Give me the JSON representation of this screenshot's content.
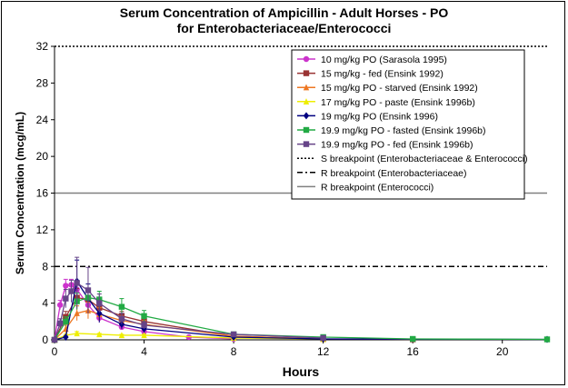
{
  "chart_data": {
    "type": "line",
    "title_line1": "Serum Concentration of Ampicillin  - Adult Horses - PO",
    "title_line2": "for Enterobacteriaceae/Enterococci",
    "xlabel": "Hours",
    "ylabel": "Serum Concentration (mcg/mL)",
    "xlim": [
      0,
      22
    ],
    "ylim": [
      0,
      32
    ],
    "xticks": [
      "0",
      "4",
      "8",
      "12",
      "16",
      "20"
    ],
    "yticks": [
      "0",
      "4",
      "8",
      "12",
      "16",
      "20",
      "24",
      "28",
      "32"
    ],
    "xtick_values": [
      0,
      4,
      8,
      12,
      16,
      20
    ],
    "ytick_values": [
      0,
      4,
      8,
      12,
      16,
      20,
      24,
      28,
      32
    ],
    "legend_position": "top-right",
    "series": [
      {
        "name": "10 mg/kg PO (Sarasola 1995)",
        "color": "#cc33cc",
        "marker": "circle",
        "x": [
          0,
          0.25,
          0.5,
          0.75,
          1,
          1.5,
          2,
          3,
          4,
          6,
          8
        ],
        "y": [
          0,
          3.8,
          5.9,
          6.0,
          5.5,
          3.8,
          2.4,
          1.4,
          0.9,
          0.3,
          0.1
        ],
        "err": [
          0,
          0.5,
          0.7,
          0.6,
          0.8,
          0.6,
          0.5,
          0.3,
          0.2,
          0.1,
          0
        ]
      },
      {
        "name": "15 mg/kg - fed (Ensink 1992)",
        "color": "#993333",
        "marker": "square",
        "x": [
          0,
          0.5,
          1,
          1.5,
          2,
          3,
          4,
          8,
          12,
          16
        ],
        "y": [
          0,
          2.5,
          4.6,
          4.4,
          3.5,
          2.6,
          2.0,
          0.4,
          0.1,
          0.05
        ],
        "err": [
          0,
          0.6,
          1.0,
          0.9,
          0.7,
          0.5,
          0.4,
          0.1,
          0,
          0
        ]
      },
      {
        "name": "15 mg/kg PO - starved (Ensink 1992)",
        "color": "#ee7722",
        "marker": "triangle",
        "x": [
          0,
          0.5,
          1,
          1.5,
          2,
          3,
          4,
          8,
          12
        ],
        "y": [
          0,
          1.2,
          2.9,
          3.2,
          2.8,
          2.1,
          1.7,
          0.4,
          0.1
        ],
        "err": [
          0,
          0.4,
          0.8,
          0.9,
          0.7,
          0.5,
          0.4,
          0.1,
          0
        ]
      },
      {
        "name": "17 mg/kg PO - paste (Ensink 1996b)",
        "color": "#eeee00",
        "marker": "triangle",
        "x": [
          0,
          0.5,
          1,
          2,
          3,
          4,
          8,
          12
        ],
        "y": [
          0,
          0.5,
          0.7,
          0.6,
          0.5,
          0.5,
          0.2,
          0.1
        ],
        "err": [
          0,
          0.1,
          0.2,
          0.1,
          0.1,
          0.1,
          0,
          0
        ]
      },
      {
        "name": "19 mg/kg PO (Ensink 1996)",
        "color": "#000080",
        "marker": "diamond",
        "x": [
          0,
          0.5,
          1,
          1.5,
          2,
          3,
          4,
          8,
          12,
          22
        ],
        "y": [
          0,
          0.3,
          6.4,
          4.5,
          2.9,
          1.7,
          1.2,
          0.3,
          0.1,
          0.05
        ],
        "err": [
          0,
          0.1,
          2.3,
          1.6,
          1.0,
          0.5,
          0.4,
          0.1,
          0,
          0
        ]
      },
      {
        "name": "19.9 mg/kg PO - fasted (Ensink 1996b)",
        "color": "#22aa44",
        "marker": "square",
        "x": [
          0,
          0.5,
          1,
          1.5,
          2,
          3,
          4,
          8,
          12,
          16,
          22
        ],
        "y": [
          0,
          2.0,
          4.2,
          4.6,
          4.4,
          3.6,
          2.6,
          0.6,
          0.3,
          0.1,
          0.05
        ],
        "err": [
          0,
          0.5,
          0.9,
          0.9,
          0.9,
          0.9,
          0.6,
          0.2,
          0.1,
          0,
          0
        ]
      },
      {
        "name": "19.9 mg/kg PO - fed (Ensink 1996b)",
        "color": "#664488",
        "marker": "square",
        "x": [
          0,
          0.25,
          0.5,
          0.75,
          1,
          1.5,
          2,
          3,
          4,
          8,
          12
        ],
        "y": [
          0,
          1.8,
          4.5,
          5.3,
          6.2,
          5.4,
          4.0,
          2.3,
          1.6,
          0.6,
          0.2
        ],
        "err": [
          0,
          0.5,
          1.0,
          1.2,
          2.8,
          2.5,
          1.0,
          0.6,
          0.4,
          0.2,
          0.1
        ]
      }
    ],
    "reference_lines": [
      {
        "name": "S breakpoint (Enterobacteriaceae & Enterococci)",
        "y": 32,
        "color": "#000000",
        "dash": "dot"
      },
      {
        "name": "R breakpoint (Enterobacteriaceae)",
        "y": 8,
        "color": "#000000",
        "dash": "dashdot"
      },
      {
        "name": "R breakpoint (Enterococci)",
        "y": 16,
        "color": "#808080",
        "dash": "solid"
      }
    ]
  }
}
